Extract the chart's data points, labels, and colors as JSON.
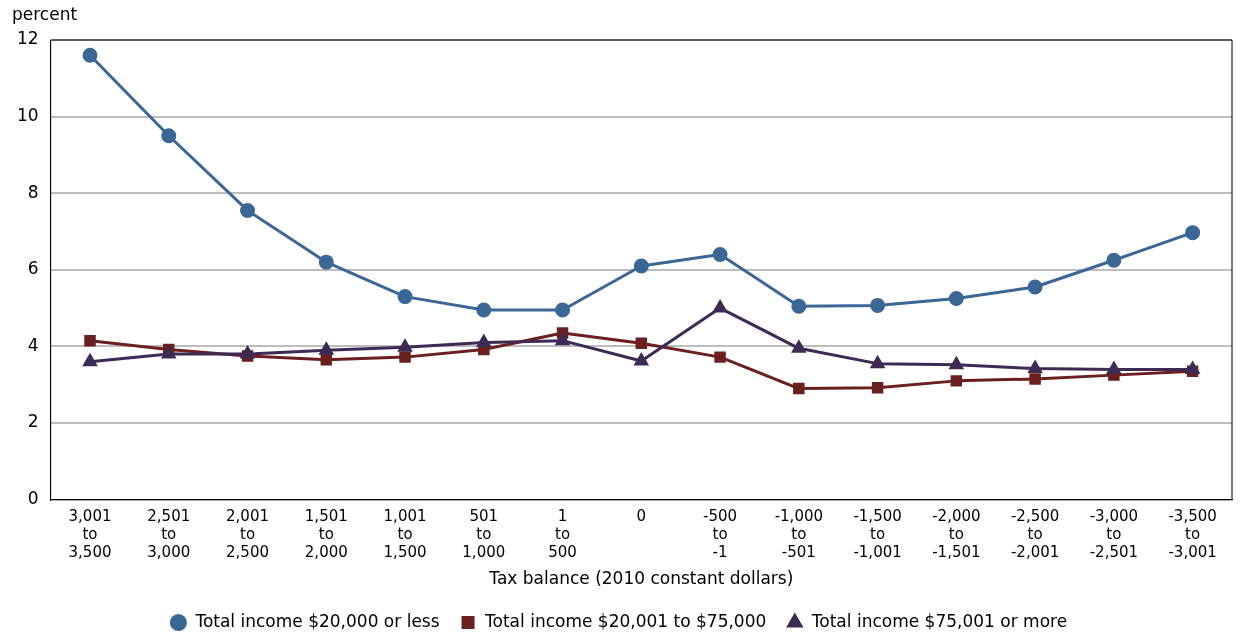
{
  "chart_data": {
    "type": "line",
    "ylabel": "percent",
    "xlabel": "Tax balance (2010 constant dollars)",
    "categories": [
      "3,001 to 3,500",
      "2,501 to 3,000",
      "2,001 to 2,500",
      "1,501 to 2,000",
      "1,001 to 1,500",
      "501 to 1,000",
      "1 to 500",
      "0",
      "-500 to -1",
      "-1,000 to -501",
      "-1,500 to -1,001",
      "-2,000 to -1,501",
      "-2,500 to -2,001",
      "-3,000 to -2,501",
      "-3,500 to -3,001"
    ],
    "series": [
      {
        "name": "Total income $20,000 or less",
        "color": "#3a6796",
        "marker": "circle",
        "values": [
          11.6,
          9.5,
          7.55,
          6.2,
          5.3,
          4.95,
          4.95,
          6.1,
          6.4,
          5.05,
          5.07,
          5.25,
          5.55,
          6.25,
          6.97
        ]
      },
      {
        "name": "Total income $20,001 to $75,000",
        "color": "#6b1f1f",
        "marker": "square",
        "values": [
          4.15,
          3.92,
          3.75,
          3.65,
          3.72,
          3.92,
          4.35,
          4.08,
          3.72,
          2.9,
          2.92,
          3.1,
          3.15,
          3.25,
          3.35
        ]
      },
      {
        "name": "Total income $75,001 or more",
        "color": "#3d2b56",
        "marker": "triangle",
        "values": [
          3.6,
          3.8,
          3.8,
          3.9,
          3.98,
          4.1,
          4.15,
          3.62,
          5.0,
          3.95,
          3.55,
          3.52,
          3.42,
          3.4,
          3.4
        ]
      }
    ],
    "ylim": [
      0,
      12
    ],
    "yticks": [
      0,
      2,
      4,
      6,
      8,
      10,
      12
    ],
    "grid": "y",
    "legend": "bottom",
    "line_style": "solid"
  }
}
